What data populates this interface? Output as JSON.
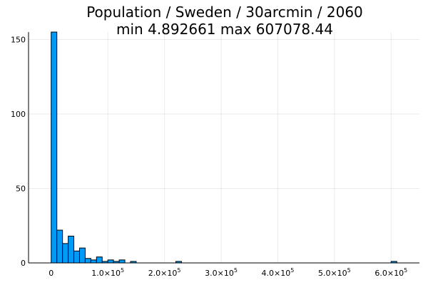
{
  "chart_data": {
    "type": "bar",
    "title": "Population / Sweden / 30arcmin / 2060",
    "subtitle": "min 4.892661  max 607078.44",
    "xlabel": "",
    "ylabel": "",
    "xlim": [
      -40000,
      650000
    ],
    "ylim": [
      0,
      155
    ],
    "grid": true,
    "legend": "none",
    "bar_color": "#009af9",
    "bin_width": 10000,
    "x_ticks": [
      {
        "value": 0,
        "mantissa": "0",
        "exp": ""
      },
      {
        "value": 100000,
        "mantissa": "1.0×10",
        "exp": "5"
      },
      {
        "value": 200000,
        "mantissa": "2.0×10",
        "exp": "5"
      },
      {
        "value": 300000,
        "mantissa": "3.0×10",
        "exp": "5"
      },
      {
        "value": 400000,
        "mantissa": "4.0×10",
        "exp": "5"
      },
      {
        "value": 500000,
        "mantissa": "5.0×10",
        "exp": "5"
      },
      {
        "value": 600000,
        "mantissa": "6.0×10",
        "exp": "5"
      }
    ],
    "y_ticks": [
      0,
      50,
      100,
      150
    ],
    "bins": [
      {
        "x0": 0,
        "count": 155
      },
      {
        "x0": 10000,
        "count": 22
      },
      {
        "x0": 20000,
        "count": 13
      },
      {
        "x0": 30000,
        "count": 18
      },
      {
        "x0": 40000,
        "count": 8
      },
      {
        "x0": 50000,
        "count": 10
      },
      {
        "x0": 60000,
        "count": 3
      },
      {
        "x0": 70000,
        "count": 2
      },
      {
        "x0": 80000,
        "count": 4
      },
      {
        "x0": 90000,
        "count": 1
      },
      {
        "x0": 100000,
        "count": 2
      },
      {
        "x0": 110000,
        "count": 1
      },
      {
        "x0": 120000,
        "count": 2
      },
      {
        "x0": 140000,
        "count": 1
      },
      {
        "x0": 220000,
        "count": 1
      },
      {
        "x0": 600000,
        "count": 1
      }
    ]
  }
}
